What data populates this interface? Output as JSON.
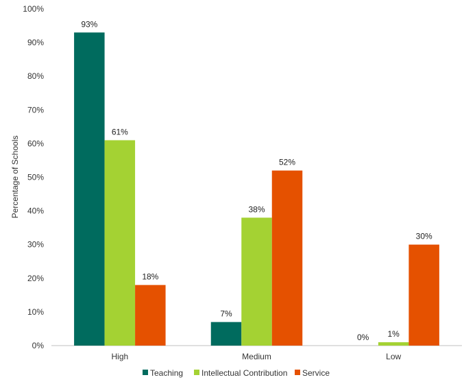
{
  "chart_data": {
    "type": "bar",
    "title": "",
    "xlabel": "",
    "ylabel": "Percentage of Schools",
    "categories": [
      "High",
      "Medium",
      "Low"
    ],
    "series": [
      {
        "name": "Teaching",
        "values": [
          93,
          7,
          0
        ],
        "labels": [
          "93%",
          "7%",
          "0%"
        ],
        "color": "#006b5e"
      },
      {
        "name": "Intellectual Contribution",
        "values": [
          61,
          38,
          1
        ],
        "labels": [
          "61%",
          "38%",
          "1%"
        ],
        "color": "#a4d233"
      },
      {
        "name": "Service",
        "values": [
          18,
          52,
          30
        ],
        "labels": [
          "18%",
          "52%",
          "30%"
        ],
        "color": "#e55100"
      }
    ],
    "ylim": [
      0,
      100
    ],
    "yticks": [
      0,
      10,
      20,
      30,
      40,
      50,
      60,
      70,
      80,
      90,
      100
    ],
    "ytick_labels": [
      "0%",
      "10%",
      "20%",
      "30%",
      "40%",
      "50%",
      "60%",
      "70%",
      "80%",
      "90%",
      "100%"
    ],
    "grid": false,
    "legend_position": "bottom"
  }
}
